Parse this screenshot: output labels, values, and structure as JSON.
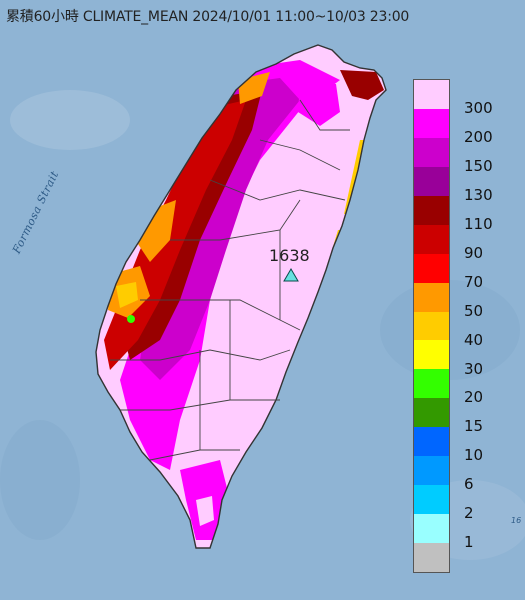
{
  "title": "累積60小時 CLIMATE_MEAN 2024/10/01 11:00~10/03 23:00",
  "strait_label": "Formosa Strait",
  "station": {
    "value": "1638",
    "marker": "triangle-marker-icon",
    "marker_color": "#66e0e0"
  },
  "sea_tag": "16",
  "legend": {
    "unit_levels": [
      "300",
      "200",
      "150",
      "130",
      "110",
      "90",
      "70",
      "50",
      "40",
      "30",
      "20",
      "15",
      "10",
      "6",
      "2",
      "1"
    ],
    "colors": [
      "#ffccff",
      "#ff00ff",
      "#cc00cc",
      "#990099",
      "#990000",
      "#cc0000",
      "#ff0000",
      "#ff9900",
      "#ffcc00",
      "#ffff00",
      "#33ff00",
      "#339900",
      "#0066ff",
      "#0099ff",
      "#00ccff",
      "#99ffff",
      "#c0c0c0"
    ]
  },
  "colors": {
    "sea": "#8fb4d4",
    "land_outline": "#333333",
    "county_border": "#444444"
  }
}
